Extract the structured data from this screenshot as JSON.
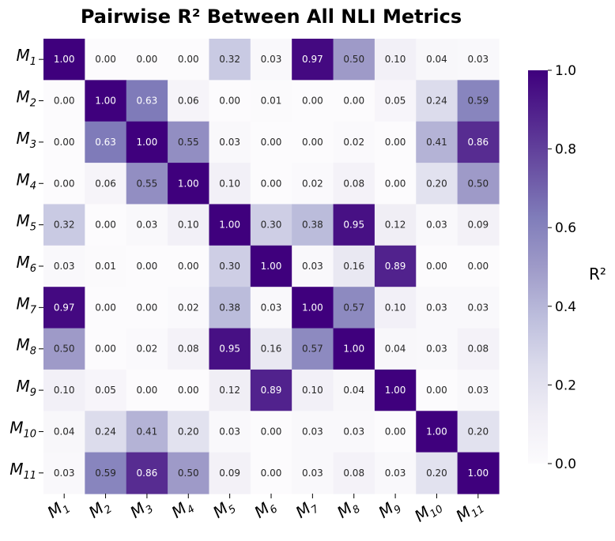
{
  "chart_data": {
    "type": "heatmap",
    "title": "Pairwise R² Between All NLI Metrics",
    "colorbar_label": "R²",
    "colormap": "Purples",
    "vmin": 0.0,
    "vmax": 1.0,
    "colorbar_ticks": [
      "0.0",
      "0.2",
      "0.4",
      "0.6",
      "0.8",
      "1.0"
    ],
    "labels": [
      {
        "base": "M",
        "sub": "1"
      },
      {
        "base": "M",
        "sub": "2"
      },
      {
        "base": "M",
        "sub": "3"
      },
      {
        "base": "M",
        "sub": "4"
      },
      {
        "base": "M",
        "sub": "5"
      },
      {
        "base": "M",
        "sub": "6"
      },
      {
        "base": "M",
        "sub": "7"
      },
      {
        "base": "M",
        "sub": "8"
      },
      {
        "base": "M",
        "sub": "9"
      },
      {
        "base": "M",
        "sub": "10"
      },
      {
        "base": "M",
        "sub": "11"
      }
    ],
    "matrix": [
      [
        1.0,
        0.0,
        0.0,
        0.0,
        0.32,
        0.03,
        0.97,
        0.5,
        0.1,
        0.04,
        0.03
      ],
      [
        0.0,
        1.0,
        0.63,
        0.06,
        0.0,
        0.01,
        0.0,
        0.0,
        0.05,
        0.24,
        0.59
      ],
      [
        0.0,
        0.63,
        1.0,
        0.55,
        0.03,
        0.0,
        0.0,
        0.02,
        0.0,
        0.41,
        0.86
      ],
      [
        0.0,
        0.06,
        0.55,
        1.0,
        0.1,
        0.0,
        0.02,
        0.08,
        0.0,
        0.2,
        0.5
      ],
      [
        0.32,
        0.0,
        0.03,
        0.1,
        1.0,
        0.3,
        0.38,
        0.95,
        0.12,
        0.03,
        0.09
      ],
      [
        0.03,
        0.01,
        0.0,
        0.0,
        0.3,
        1.0,
        0.03,
        0.16,
        0.89,
        0.0,
        0.0
      ],
      [
        0.97,
        0.0,
        0.0,
        0.02,
        0.38,
        0.03,
        1.0,
        0.57,
        0.1,
        0.03,
        0.03
      ],
      [
        0.5,
        0.0,
        0.02,
        0.08,
        0.95,
        0.16,
        0.57,
        1.0,
        0.04,
        0.03,
        0.08
      ],
      [
        0.1,
        0.05,
        0.0,
        0.0,
        0.12,
        0.89,
        0.1,
        0.04,
        1.0,
        0.0,
        0.03
      ],
      [
        0.04,
        0.24,
        0.41,
        0.2,
        0.03,
        0.0,
        0.03,
        0.03,
        0.0,
        1.0,
        0.2
      ],
      [
        0.03,
        0.59,
        0.86,
        0.5,
        0.09,
        0.0,
        0.03,
        0.08,
        0.03,
        0.2,
        1.0
      ]
    ]
  }
}
